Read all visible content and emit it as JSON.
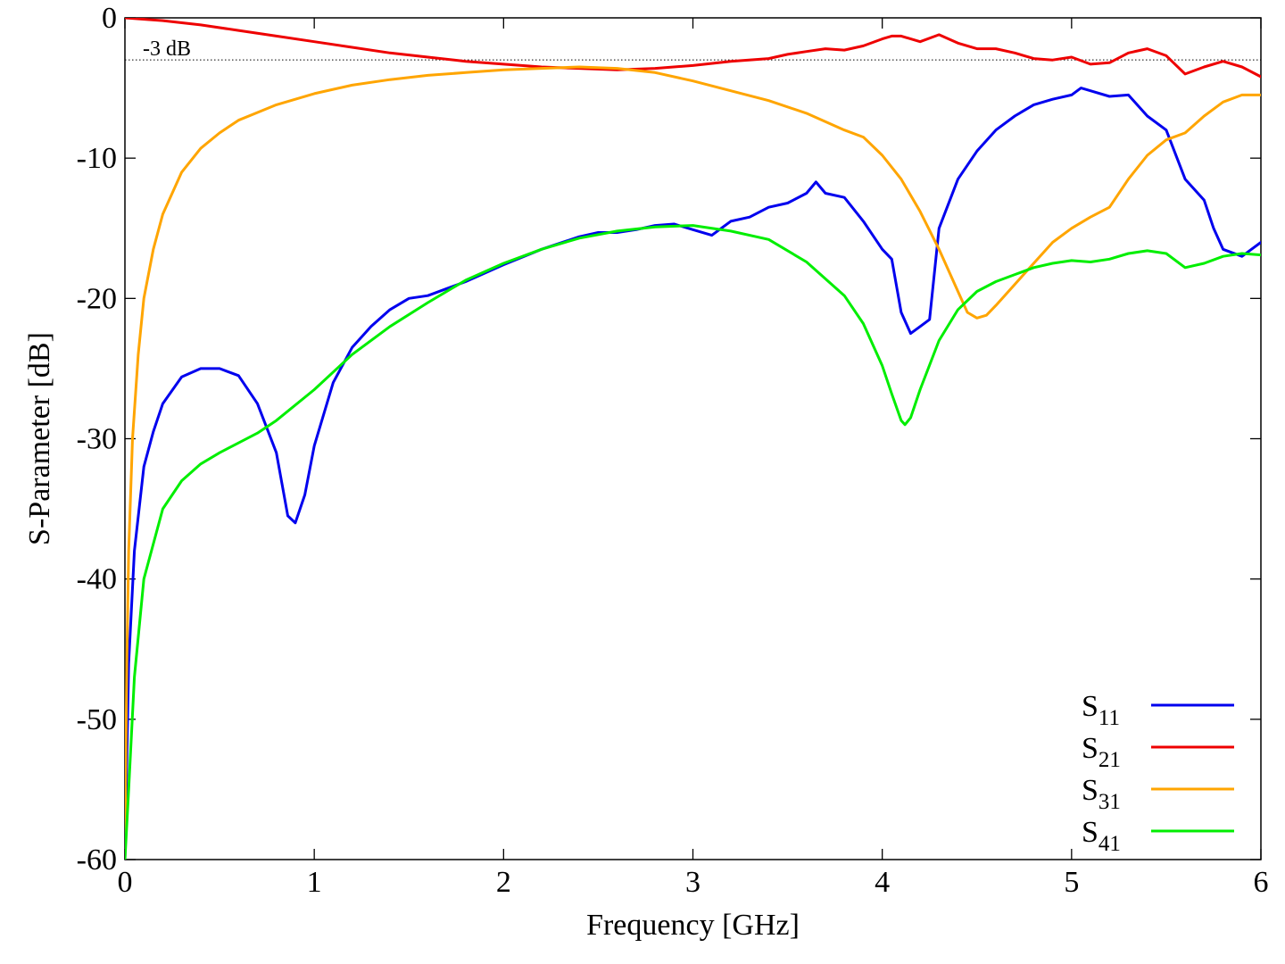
{
  "chart_data": {
    "type": "line",
    "title": "",
    "xlabel": "Frequency [GHz]",
    "ylabel": "S-Parameter [dB]",
    "xlim": [
      0,
      6
    ],
    "ylim": [
      -60,
      0
    ],
    "xticks": [
      0,
      1,
      2,
      3,
      4,
      5,
      6
    ],
    "yticks": [
      -60,
      -50,
      -40,
      -30,
      -20,
      -10,
      0
    ],
    "grid": false,
    "legend_position": "bottom-right",
    "reference_line": {
      "y": -3,
      "label": "-3 dB",
      "style": "dotted"
    },
    "series": [
      {
        "name": "S11",
        "base": "S",
        "sub": "11",
        "color": "#0000ee",
        "points": [
          [
            0,
            -60
          ],
          [
            0.02,
            -46
          ],
          [
            0.05,
            -38
          ],
          [
            0.1,
            -32
          ],
          [
            0.15,
            -29.5
          ],
          [
            0.2,
            -27.5
          ],
          [
            0.3,
            -25.6
          ],
          [
            0.4,
            -25
          ],
          [
            0.5,
            -25
          ],
          [
            0.6,
            -25.5
          ],
          [
            0.7,
            -27.5
          ],
          [
            0.8,
            -31
          ],
          [
            0.86,
            -35.5
          ],
          [
            0.9,
            -36
          ],
          [
            0.95,
            -34
          ],
          [
            1.0,
            -30.5
          ],
          [
            1.1,
            -26
          ],
          [
            1.2,
            -23.5
          ],
          [
            1.3,
            -22
          ],
          [
            1.4,
            -20.8
          ],
          [
            1.5,
            -20
          ],
          [
            1.6,
            -19.8
          ],
          [
            1.7,
            -19.3
          ],
          [
            1.8,
            -18.8
          ],
          [
            2.0,
            -17.6
          ],
          [
            2.2,
            -16.5
          ],
          [
            2.4,
            -15.6
          ],
          [
            2.5,
            -15.3
          ],
          [
            2.6,
            -15.3
          ],
          [
            2.7,
            -15.1
          ],
          [
            2.8,
            -14.8
          ],
          [
            2.9,
            -14.7
          ],
          [
            3.0,
            -15.1
          ],
          [
            3.1,
            -15.5
          ],
          [
            3.2,
            -14.5
          ],
          [
            3.3,
            -14.2
          ],
          [
            3.4,
            -13.5
          ],
          [
            3.5,
            -13.2
          ],
          [
            3.6,
            -12.5
          ],
          [
            3.65,
            -11.7
          ],
          [
            3.7,
            -12.5
          ],
          [
            3.8,
            -12.8
          ],
          [
            3.9,
            -14.5
          ],
          [
            4.0,
            -16.5
          ],
          [
            4.05,
            -17.2
          ],
          [
            4.1,
            -21
          ],
          [
            4.15,
            -22.5
          ],
          [
            4.2,
            -22
          ],
          [
            4.25,
            -21.5
          ],
          [
            4.3,
            -15
          ],
          [
            4.4,
            -11.5
          ],
          [
            4.5,
            -9.5
          ],
          [
            4.6,
            -8
          ],
          [
            4.7,
            -7
          ],
          [
            4.8,
            -6.2
          ],
          [
            4.9,
            -5.8
          ],
          [
            5.0,
            -5.5
          ],
          [
            5.05,
            -5
          ],
          [
            5.1,
            -5.2
          ],
          [
            5.2,
            -5.6
          ],
          [
            5.3,
            -5.5
          ],
          [
            5.4,
            -7
          ],
          [
            5.5,
            -8
          ],
          [
            5.6,
            -11.5
          ],
          [
            5.7,
            -13
          ],
          [
            5.75,
            -15
          ],
          [
            5.8,
            -16.5
          ],
          [
            5.9,
            -17
          ],
          [
            5.95,
            -16.5
          ],
          [
            6.0,
            -16
          ]
        ]
      },
      {
        "name": "S21",
        "base": "S",
        "sub": "21",
        "color": "#ee0000",
        "points": [
          [
            0,
            0
          ],
          [
            0.2,
            -0.2
          ],
          [
            0.4,
            -0.5
          ],
          [
            0.6,
            -0.9
          ],
          [
            0.8,
            -1.3
          ],
          [
            1.0,
            -1.7
          ],
          [
            1.2,
            -2.1
          ],
          [
            1.4,
            -2.5
          ],
          [
            1.6,
            -2.8
          ],
          [
            1.8,
            -3.1
          ],
          [
            2.0,
            -3.3
          ],
          [
            2.2,
            -3.5
          ],
          [
            2.4,
            -3.6
          ],
          [
            2.6,
            -3.7
          ],
          [
            2.8,
            -3.6
          ],
          [
            3.0,
            -3.4
          ],
          [
            3.2,
            -3.1
          ],
          [
            3.4,
            -2.9
          ],
          [
            3.5,
            -2.6
          ],
          [
            3.6,
            -2.4
          ],
          [
            3.7,
            -2.2
          ],
          [
            3.8,
            -2.3
          ],
          [
            3.9,
            -2.0
          ],
          [
            4.0,
            -1.5
          ],
          [
            4.05,
            -1.3
          ],
          [
            4.1,
            -1.3
          ],
          [
            4.2,
            -1.7
          ],
          [
            4.3,
            -1.2
          ],
          [
            4.4,
            -1.8
          ],
          [
            4.5,
            -2.2
          ],
          [
            4.6,
            -2.2
          ],
          [
            4.7,
            -2.5
          ],
          [
            4.8,
            -2.9
          ],
          [
            4.9,
            -3.0
          ],
          [
            5.0,
            -2.8
          ],
          [
            5.1,
            -3.3
          ],
          [
            5.2,
            -3.2
          ],
          [
            5.3,
            -2.5
          ],
          [
            5.4,
            -2.2
          ],
          [
            5.5,
            -2.7
          ],
          [
            5.6,
            -4.0
          ],
          [
            5.7,
            -3.5
          ],
          [
            5.8,
            -3.1
          ],
          [
            5.9,
            -3.5
          ],
          [
            6.0,
            -4.2
          ]
        ]
      },
      {
        "name": "S31",
        "base": "S",
        "sub": "31",
        "color": "#ffa500",
        "points": [
          [
            0,
            -59
          ],
          [
            0.01,
            -46
          ],
          [
            0.02,
            -38
          ],
          [
            0.04,
            -30
          ],
          [
            0.07,
            -24
          ],
          [
            0.1,
            -20
          ],
          [
            0.15,
            -16.5
          ],
          [
            0.2,
            -14
          ],
          [
            0.3,
            -11
          ],
          [
            0.4,
            -9.3
          ],
          [
            0.5,
            -8.2
          ],
          [
            0.6,
            -7.3
          ],
          [
            0.8,
            -6.2
          ],
          [
            1.0,
            -5.4
          ],
          [
            1.2,
            -4.8
          ],
          [
            1.4,
            -4.4
          ],
          [
            1.6,
            -4.1
          ],
          [
            1.8,
            -3.9
          ],
          [
            2.0,
            -3.7
          ],
          [
            2.2,
            -3.6
          ],
          [
            2.4,
            -3.5
          ],
          [
            2.6,
            -3.6
          ],
          [
            2.8,
            -3.9
          ],
          [
            3.0,
            -4.5
          ],
          [
            3.2,
            -5.2
          ],
          [
            3.4,
            -5.9
          ],
          [
            3.6,
            -6.8
          ],
          [
            3.8,
            -8.0
          ],
          [
            3.9,
            -8.5
          ],
          [
            4.0,
            -9.8
          ],
          [
            4.1,
            -11.5
          ],
          [
            4.2,
            -13.8
          ],
          [
            4.3,
            -16.5
          ],
          [
            4.4,
            -19.5
          ],
          [
            4.45,
            -21.0
          ],
          [
            4.5,
            -21.4
          ],
          [
            4.55,
            -21.2
          ],
          [
            4.6,
            -20.5
          ],
          [
            4.7,
            -19
          ],
          [
            4.8,
            -17.5
          ],
          [
            4.9,
            -16
          ],
          [
            5.0,
            -15
          ],
          [
            5.1,
            -14.2
          ],
          [
            5.2,
            -13.5
          ],
          [
            5.3,
            -11.5
          ],
          [
            5.4,
            -9.8
          ],
          [
            5.5,
            -8.7
          ],
          [
            5.6,
            -8.2
          ],
          [
            5.7,
            -7
          ],
          [
            5.8,
            -6.0
          ],
          [
            5.9,
            -5.5
          ],
          [
            6.0,
            -5.5
          ]
        ]
      },
      {
        "name": "S41",
        "base": "S",
        "sub": "41",
        "color": "#00ee00",
        "points": [
          [
            0,
            -60
          ],
          [
            0.02,
            -55
          ],
          [
            0.05,
            -47
          ],
          [
            0.1,
            -40
          ],
          [
            0.2,
            -35
          ],
          [
            0.3,
            -33
          ],
          [
            0.4,
            -31.8
          ],
          [
            0.5,
            -31
          ],
          [
            0.6,
            -30.3
          ],
          [
            0.7,
            -29.6
          ],
          [
            0.8,
            -28.7
          ],
          [
            1.0,
            -26.5
          ],
          [
            1.2,
            -24
          ],
          [
            1.4,
            -22
          ],
          [
            1.6,
            -20.3
          ],
          [
            1.8,
            -18.7
          ],
          [
            2.0,
            -17.5
          ],
          [
            2.2,
            -16.5
          ],
          [
            2.4,
            -15.7
          ],
          [
            2.6,
            -15.2
          ],
          [
            2.8,
            -14.9
          ],
          [
            3.0,
            -14.8
          ],
          [
            3.2,
            -15.2
          ],
          [
            3.4,
            -15.8
          ],
          [
            3.6,
            -17.4
          ],
          [
            3.8,
            -19.8
          ],
          [
            3.9,
            -21.8
          ],
          [
            4.0,
            -24.8
          ],
          [
            4.05,
            -26.8
          ],
          [
            4.1,
            -28.7
          ],
          [
            4.12,
            -29
          ],
          [
            4.15,
            -28.5
          ],
          [
            4.2,
            -26.5
          ],
          [
            4.3,
            -23
          ],
          [
            4.4,
            -20.8
          ],
          [
            4.5,
            -19.5
          ],
          [
            4.6,
            -18.8
          ],
          [
            4.7,
            -18.3
          ],
          [
            4.8,
            -17.8
          ],
          [
            4.9,
            -17.5
          ],
          [
            5.0,
            -17.3
          ],
          [
            5.1,
            -17.4
          ],
          [
            5.2,
            -17.2
          ],
          [
            5.3,
            -16.8
          ],
          [
            5.4,
            -16.6
          ],
          [
            5.5,
            -16.8
          ],
          [
            5.6,
            -17.8
          ],
          [
            5.7,
            -17.5
          ],
          [
            5.8,
            -17.0
          ],
          [
            5.9,
            -16.8
          ],
          [
            6.0,
            -16.9
          ]
        ]
      }
    ]
  }
}
